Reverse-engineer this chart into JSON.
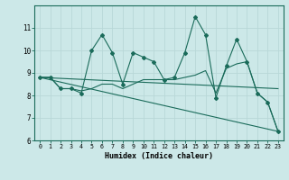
{
  "xlabel": "Humidex (Indice chaleur)",
  "background_color": "#cce8e8",
  "grid_color": "#b8d8d8",
  "line_color": "#1a6b5a",
  "xlim": [
    -0.5,
    23.5
  ],
  "ylim": [
    6,
    12
  ],
  "yticks": [
    6,
    7,
    8,
    9,
    10,
    11
  ],
  "xticks": [
    0,
    1,
    2,
    3,
    4,
    5,
    6,
    7,
    8,
    9,
    10,
    11,
    12,
    13,
    14,
    15,
    16,
    17,
    18,
    19,
    20,
    21,
    22,
    23
  ],
  "series1_x": [
    0,
    1,
    2,
    3,
    4,
    5,
    6,
    7,
    8,
    9,
    10,
    11,
    12,
    13,
    14,
    15,
    16,
    17,
    18,
    19,
    20,
    21,
    22,
    23
  ],
  "series1_y": [
    8.8,
    8.8,
    8.3,
    8.3,
    8.1,
    10.0,
    10.7,
    9.9,
    8.5,
    9.9,
    9.7,
    9.5,
    8.7,
    8.8,
    9.9,
    11.5,
    10.7,
    7.9,
    9.3,
    10.5,
    9.5,
    8.1,
    7.7,
    6.4
  ],
  "series2_x": [
    0,
    1,
    2,
    3,
    4,
    5,
    6,
    7,
    8,
    9,
    10,
    11,
    12,
    13,
    14,
    15,
    16,
    17,
    18,
    19,
    20,
    21,
    22,
    23
  ],
  "series2_y": [
    8.8,
    8.8,
    8.3,
    8.3,
    8.2,
    8.3,
    8.5,
    8.5,
    8.3,
    8.5,
    8.7,
    8.7,
    8.7,
    8.7,
    8.8,
    8.9,
    9.1,
    8.1,
    9.2,
    9.4,
    9.5,
    8.1,
    7.7,
    6.4
  ],
  "series3_x": [
    0,
    23
  ],
  "series3_y": [
    8.8,
    6.4
  ],
  "series4_x": [
    0,
    23
  ],
  "series4_y": [
    8.8,
    8.3
  ]
}
